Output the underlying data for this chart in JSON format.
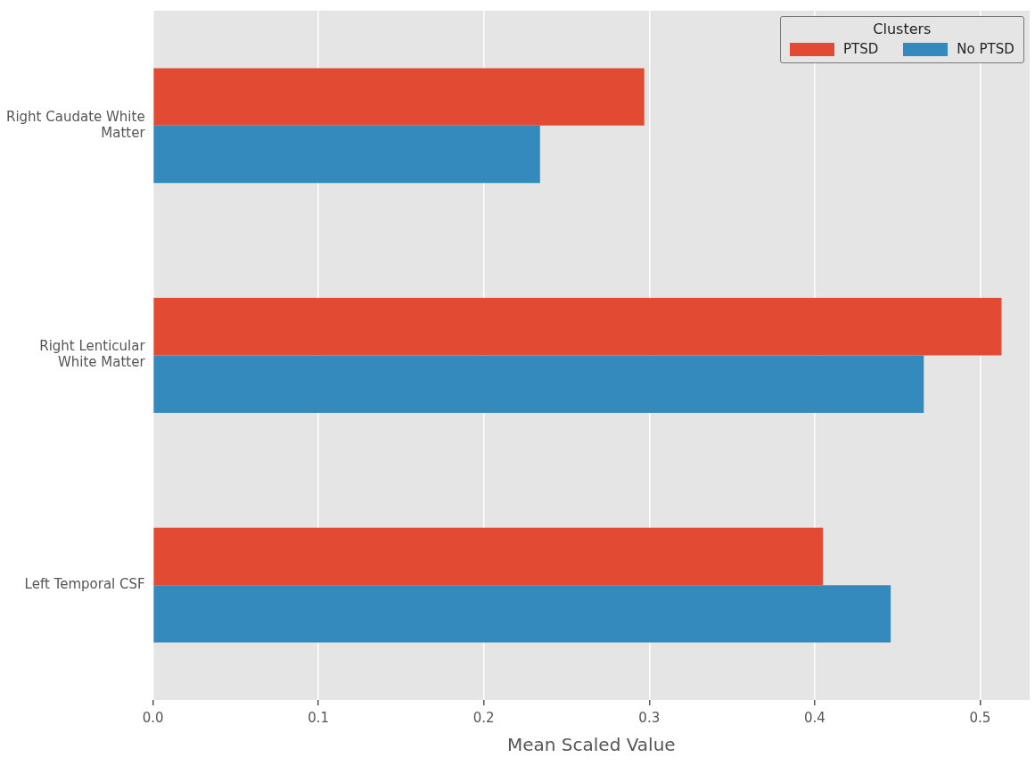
{
  "chart_data": {
    "type": "bar",
    "orientation": "horizontal",
    "xlabel": "Mean Scaled Value",
    "legend_title": "Clusters",
    "legend": "top right",
    "grid": "x",
    "categories": [
      "Right Caudate White Matter",
      "Right Lenticular White Matter",
      "Left Temporal CSF"
    ],
    "series": [
      {
        "name": "PTSD",
        "color": "#e24a33",
        "values": [
          0.297,
          0.513,
          0.405
        ]
      },
      {
        "name": "No PTSD",
        "color": "#348abd",
        "values": [
          0.234,
          0.466,
          0.446
        ]
      }
    ],
    "xlim": [
      0,
      0.53
    ],
    "xticks": [
      {
        "value": 0,
        "label": "0.0"
      },
      0.1,
      0.2,
      0.3,
      0.4,
      0.5
    ]
  }
}
